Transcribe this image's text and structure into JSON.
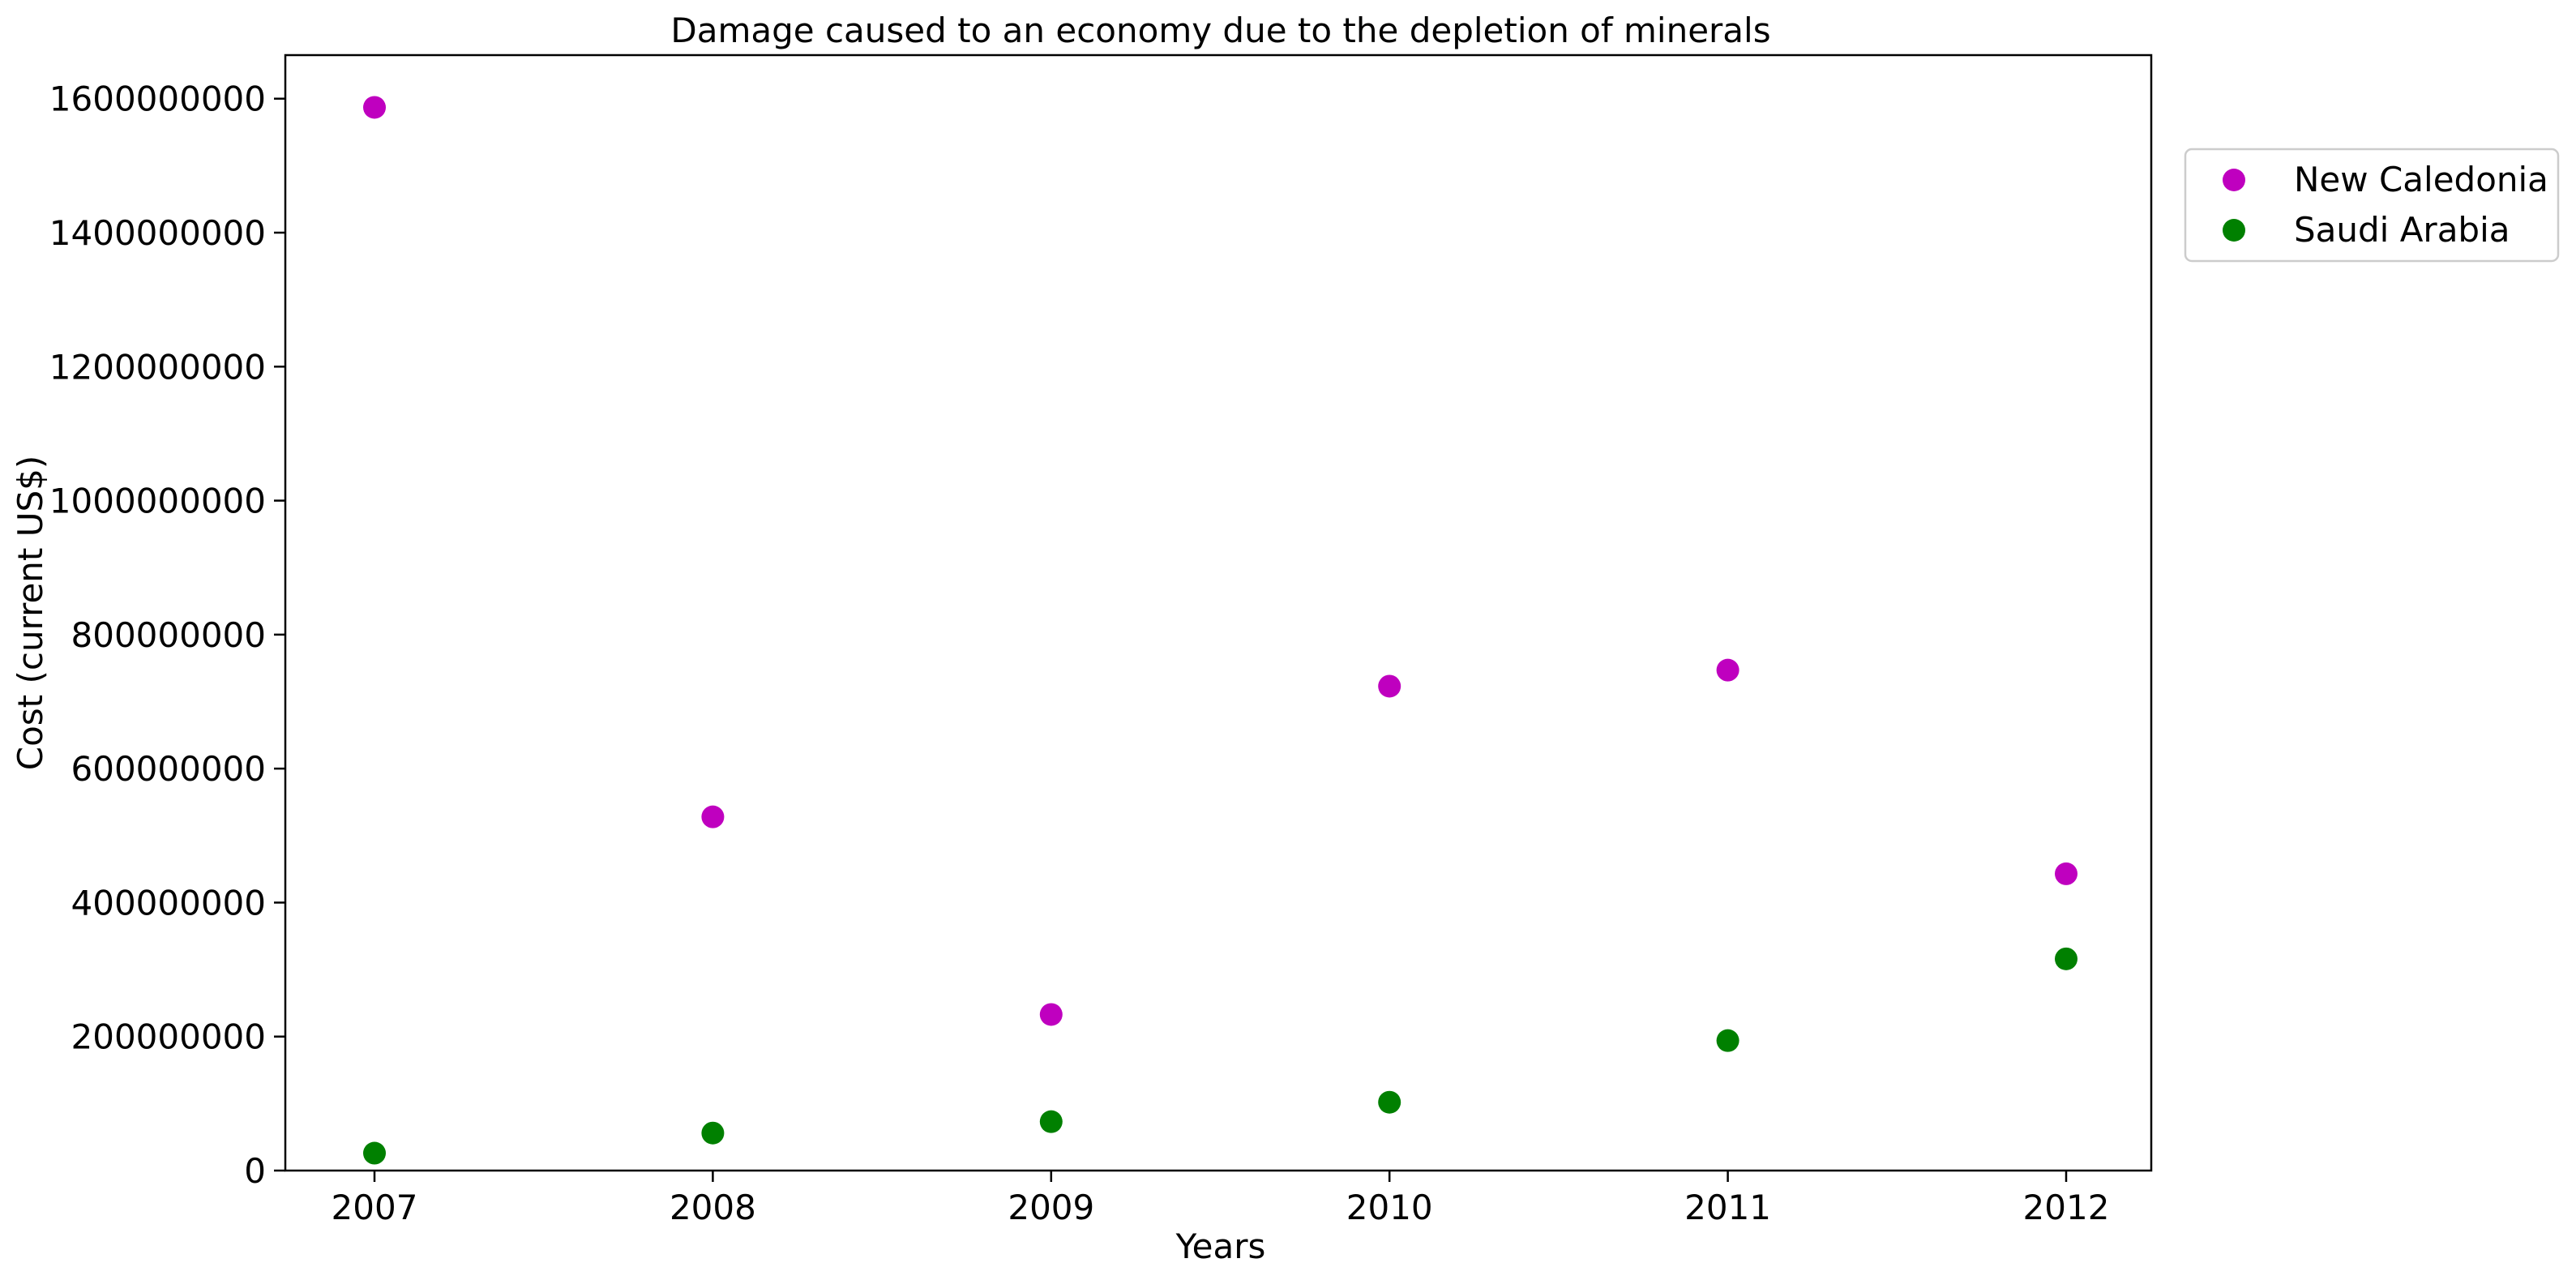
{
  "chart_data": {
    "type": "scatter",
    "title": "Damage caused to an economy due to the depletion of minerals",
    "xlabel": "Years",
    "ylabel": "Cost (current US$)",
    "x": [
      "2007",
      "2008",
      "2009",
      "2010",
      "2011",
      "2012"
    ],
    "yticks": [
      "0",
      "200000000",
      "400000000",
      "600000000",
      "800000000",
      "1000000000",
      "1200000000",
      "1400000000",
      "1600000000"
    ],
    "ylim": [
      0,
      1665000000
    ],
    "grid": false,
    "legend_position": "outside top-right",
    "series": [
      {
        "name": "New Caledonia",
        "color": "#bf00bf",
        "values": [
          1587000000,
          528000000,
          233000000,
          723000000,
          747000000,
          443000000
        ]
      },
      {
        "name": "Saudi Arabia",
        "color": "#008000",
        "values": [
          26000000,
          56000000,
          73000000,
          102000000,
          194000000,
          316000000
        ]
      }
    ]
  }
}
